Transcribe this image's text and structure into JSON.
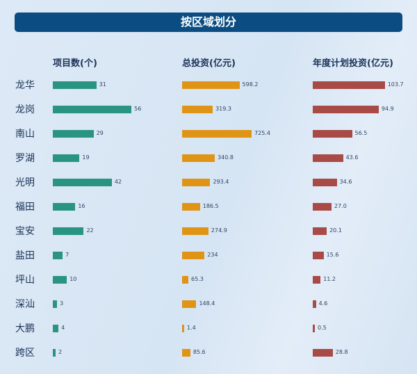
{
  "title": "按区域划分",
  "chart_data": {
    "type": "bar",
    "orientation": "horizontal",
    "categories": [
      "龙华",
      "龙岗",
      "南山",
      "罗湖",
      "光明",
      "福田",
      "宝安",
      "盐田",
      "坪山",
      "深汕",
      "大鹏",
      "跨区"
    ],
    "series": [
      {
        "name": "项目数(个)",
        "color": "#2a9482",
        "values": [
          31,
          56,
          29,
          19,
          42,
          16,
          22,
          7,
          10,
          3,
          4,
          2
        ],
        "labels": [
          "31",
          "56",
          "29",
          "19",
          "42",
          "16",
          "22",
          "7",
          "10",
          "3",
          "4",
          "2"
        ]
      },
      {
        "name": "总投资(亿元)",
        "color": "#e09416",
        "values": [
          598.2,
          319.3,
          725.4,
          340.8,
          293.4,
          186.5,
          274.9,
          234,
          65.3,
          148.4,
          1.4,
          85.6
        ],
        "labels": [
          "598.2",
          "319.3",
          "725.4",
          "340.8",
          "293.4",
          "186.5",
          "274.9",
          "234",
          "65.3",
          "148.4",
          "1.4",
          "85.6"
        ]
      },
      {
        "name": "年度计划投资(亿元)",
        "color": "#a84a45",
        "values": [
          103.7,
          94.9,
          56.5,
          43.6,
          34.6,
          27.0,
          20.1,
          15.6,
          11.2,
          4.6,
          0.5,
          28.8
        ],
        "labels": [
          "103.7",
          "94.9",
          "56.5",
          "43.6",
          "34.6",
          "27.0",
          "20.1",
          "15.6",
          "11.2",
          "4.6",
          "0.5",
          "28.8"
        ]
      }
    ],
    "grid": false,
    "legend": "none"
  }
}
